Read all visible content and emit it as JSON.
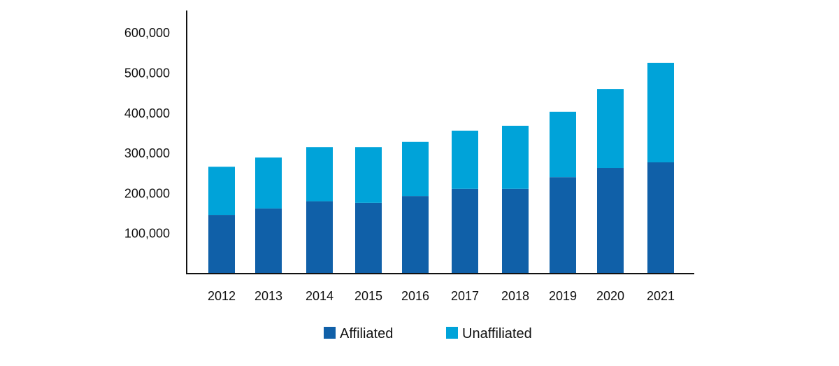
{
  "chart_data": {
    "type": "bar",
    "stacked": true,
    "title": "",
    "xlabel": "",
    "ylabel": "",
    "categories": [
      "2012",
      "2013",
      "2014",
      "2015",
      "2016",
      "2017",
      "2018",
      "2019",
      "2020",
      "2021"
    ],
    "series": [
      {
        "name": "Affiliated",
        "color": "#1060a8",
        "values": [
          150000,
          166000,
          184000,
          180000,
          197000,
          215000,
          215000,
          244000,
          267000,
          281000
        ]
      },
      {
        "name": "Unaffiliated",
        "color": "#00a3d9",
        "values": [
          120000,
          127000,
          135000,
          139000,
          135000,
          145000,
          157000,
          163000,
          197000,
          248000
        ]
      }
    ],
    "ylim": [
      0,
      600000
    ],
    "yticks": [
      "100,000",
      "200,000",
      "300,000",
      "400,000",
      "500,000",
      "600,000"
    ],
    "ytick_values": [
      100000,
      200000,
      300000,
      400000,
      500000,
      600000
    ],
    "grid": false,
    "legend_position": "bottom-center"
  }
}
